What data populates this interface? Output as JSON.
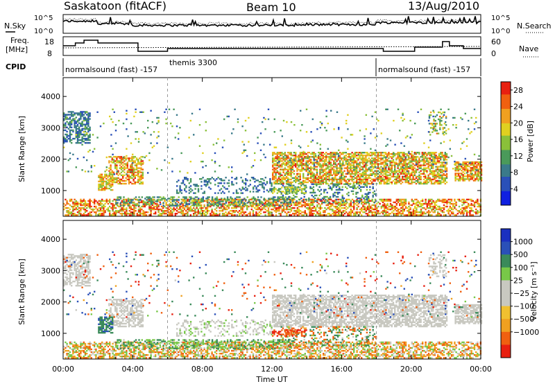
{
  "header": {
    "station": "Saskatoon (fitACF)",
    "beam": "Beam 10",
    "date": "13/Aug/2010"
  },
  "noise_panel": {
    "left_label": "N.Sky",
    "left_ticks": [
      "10^5",
      "10^0"
    ],
    "right_label": "N.Search",
    "right_ticks": [
      "10^5",
      "10^0"
    ]
  },
  "freq_panel": {
    "left_label_top": "Freq.",
    "left_label_bottom": "[MHz]",
    "left_ticks": [
      "18",
      "8"
    ],
    "right_label": "Nave",
    "right_ticks": [
      "60",
      "0"
    ]
  },
  "cpid_panel": {
    "label": "CPID",
    "segments": [
      {
        "start_hour": 0,
        "text": "normalsound (fast) -157"
      },
      {
        "start_hour": 6,
        "text": "themis 3300"
      },
      {
        "start_hour": 18,
        "text": "normalsound (fast) -157"
      }
    ]
  },
  "colors": {
    "power_scale": [
      "#1020e0",
      "#2a50b8",
      "#3a7a8a",
      "#4a9a5a",
      "#8ac03a",
      "#e0d020",
      "#f0a020",
      "#f06010",
      "#e82010"
    ],
    "velocity_scale": [
      "#e82010",
      "#f06010",
      "#f0a020",
      "#f0c030",
      "#c8c8c0",
      "#c8c8c0",
      "#78c848",
      "#3a8a5a",
      "#2a50b8",
      "#1a30c0"
    ]
  },
  "chart_data": [
    {
      "type": "heatmap",
      "name": "power",
      "ylabel": "Slant Range [km]",
      "xlim_hours": [
        0,
        24
      ],
      "ylim": [
        180,
        4600
      ],
      "y_ticks": [
        1000,
        2000,
        3000,
        4000
      ],
      "colorbar_label": "Power [dB]",
      "colorbar_ticks": [
        "4",
        "8",
        "12",
        "16",
        "20",
        "24",
        "28"
      ],
      "colorbar_range": [
        0,
        30
      ]
    },
    {
      "type": "heatmap",
      "name": "velocity",
      "ylabel": "Slant Range [km]",
      "xlabel": "Time UT",
      "xlim_hours": [
        0,
        24
      ],
      "ylim": [
        180,
        4600
      ],
      "y_ticks": [
        1000,
        2000,
        3000,
        4000
      ],
      "x_ticks": [
        "00:00",
        "04:00",
        "08:00",
        "12:00",
        "16:00",
        "20:00",
        "00:00"
      ],
      "colorbar_label": "Velocity [m s⁻¹]",
      "colorbar_ticks": [
        "1000",
        "500",
        "100",
        "25",
        "−25",
        "−100",
        "−500",
        "−1000"
      ]
    }
  ]
}
